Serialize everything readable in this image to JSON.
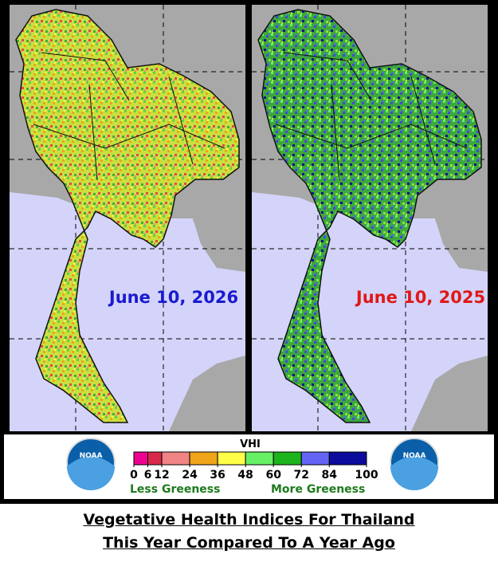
{
  "maps": [
    {
      "label": "June 10, 2026",
      "label_color": "#1a1ad0"
    },
    {
      "label": "June 10, 2025",
      "label_color": "#e01818"
    }
  ],
  "legend": {
    "title": "VHI",
    "ticks": [
      0,
      6,
      12,
      24,
      36,
      48,
      60,
      72,
      84,
      100
    ],
    "colors": [
      "#ee0090",
      "#d8284c",
      "#f08484",
      "#f0a418",
      "#ffff48",
      "#66f066",
      "#1cb41c",
      "#6464f4",
      "#0c0c9c"
    ],
    "low_label": "Less Greeness",
    "high_label": "More Greeness",
    "low_color": "#1c7a1c",
    "high_color": "#1c7a1c"
  },
  "logo_text": "NOAA",
  "caption": [
    "Vegetative Health Indices For Thailand",
    "This Year Compared To A Year Ago"
  ]
}
